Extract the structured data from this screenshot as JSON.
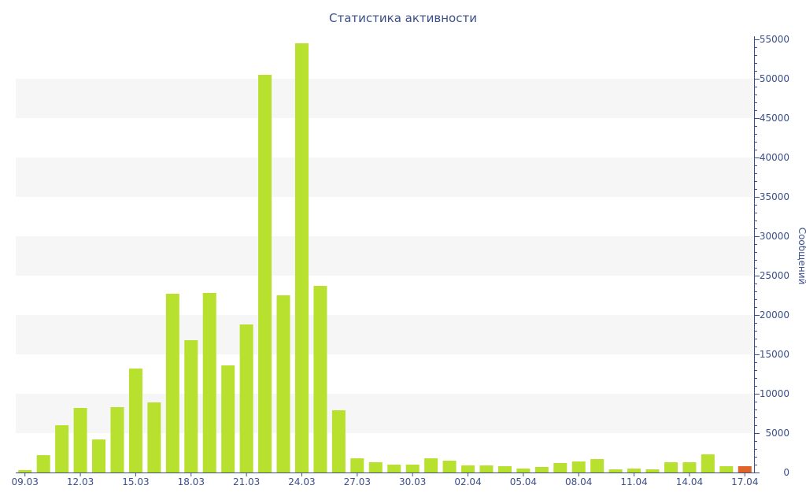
{
  "chart_data": {
    "type": "bar",
    "title": "Статистика активности",
    "ylabel": "Сообщений",
    "xlabel": "",
    "ylim": [
      0,
      55000
    ],
    "y_ticks": [
      0,
      5000,
      10000,
      15000,
      20000,
      25000,
      30000,
      35000,
      40000,
      45000,
      50000,
      55000
    ],
    "y_axis_position": "right",
    "grid": "alternating horizontal bands",
    "x_tick_labels": [
      "09.03",
      "12.03",
      "15.03",
      "18.03",
      "21.03",
      "24.03",
      "27.03",
      "30.03",
      "02.04",
      "05.04",
      "08.04",
      "11.04",
      "14.04",
      "17.04"
    ],
    "categories": [
      "09.03",
      "10.03",
      "11.03",
      "12.03",
      "13.03",
      "14.03",
      "15.03",
      "16.03",
      "17.03",
      "18.03",
      "19.03",
      "20.03",
      "21.03",
      "22.03",
      "23.03",
      "24.03",
      "25.03",
      "26.03",
      "27.03",
      "28.03",
      "29.03",
      "30.03",
      "31.03",
      "01.04",
      "02.04",
      "03.04",
      "04.04",
      "05.04",
      "06.04",
      "07.04",
      "08.04",
      "09.04",
      "10.04",
      "11.04",
      "12.04",
      "13.04",
      "14.04",
      "15.04",
      "16.04",
      "17.04"
    ],
    "values": [
      300,
      2200,
      6000,
      8200,
      4200,
      8300,
      13200,
      8900,
      22700,
      16800,
      22800,
      13600,
      18800,
      50500,
      22500,
      54500,
      23700,
      7900,
      1800,
      1300,
      1000,
      1000,
      1800,
      1500,
      900,
      900,
      800,
      500,
      700,
      1200,
      1400,
      1700,
      400,
      500,
      400,
      1300,
      1300,
      2300,
      800,
      800
    ],
    "bar_color": "#b8e02e",
    "highlight_color": "#e0632a",
    "highlight_index": 39
  }
}
